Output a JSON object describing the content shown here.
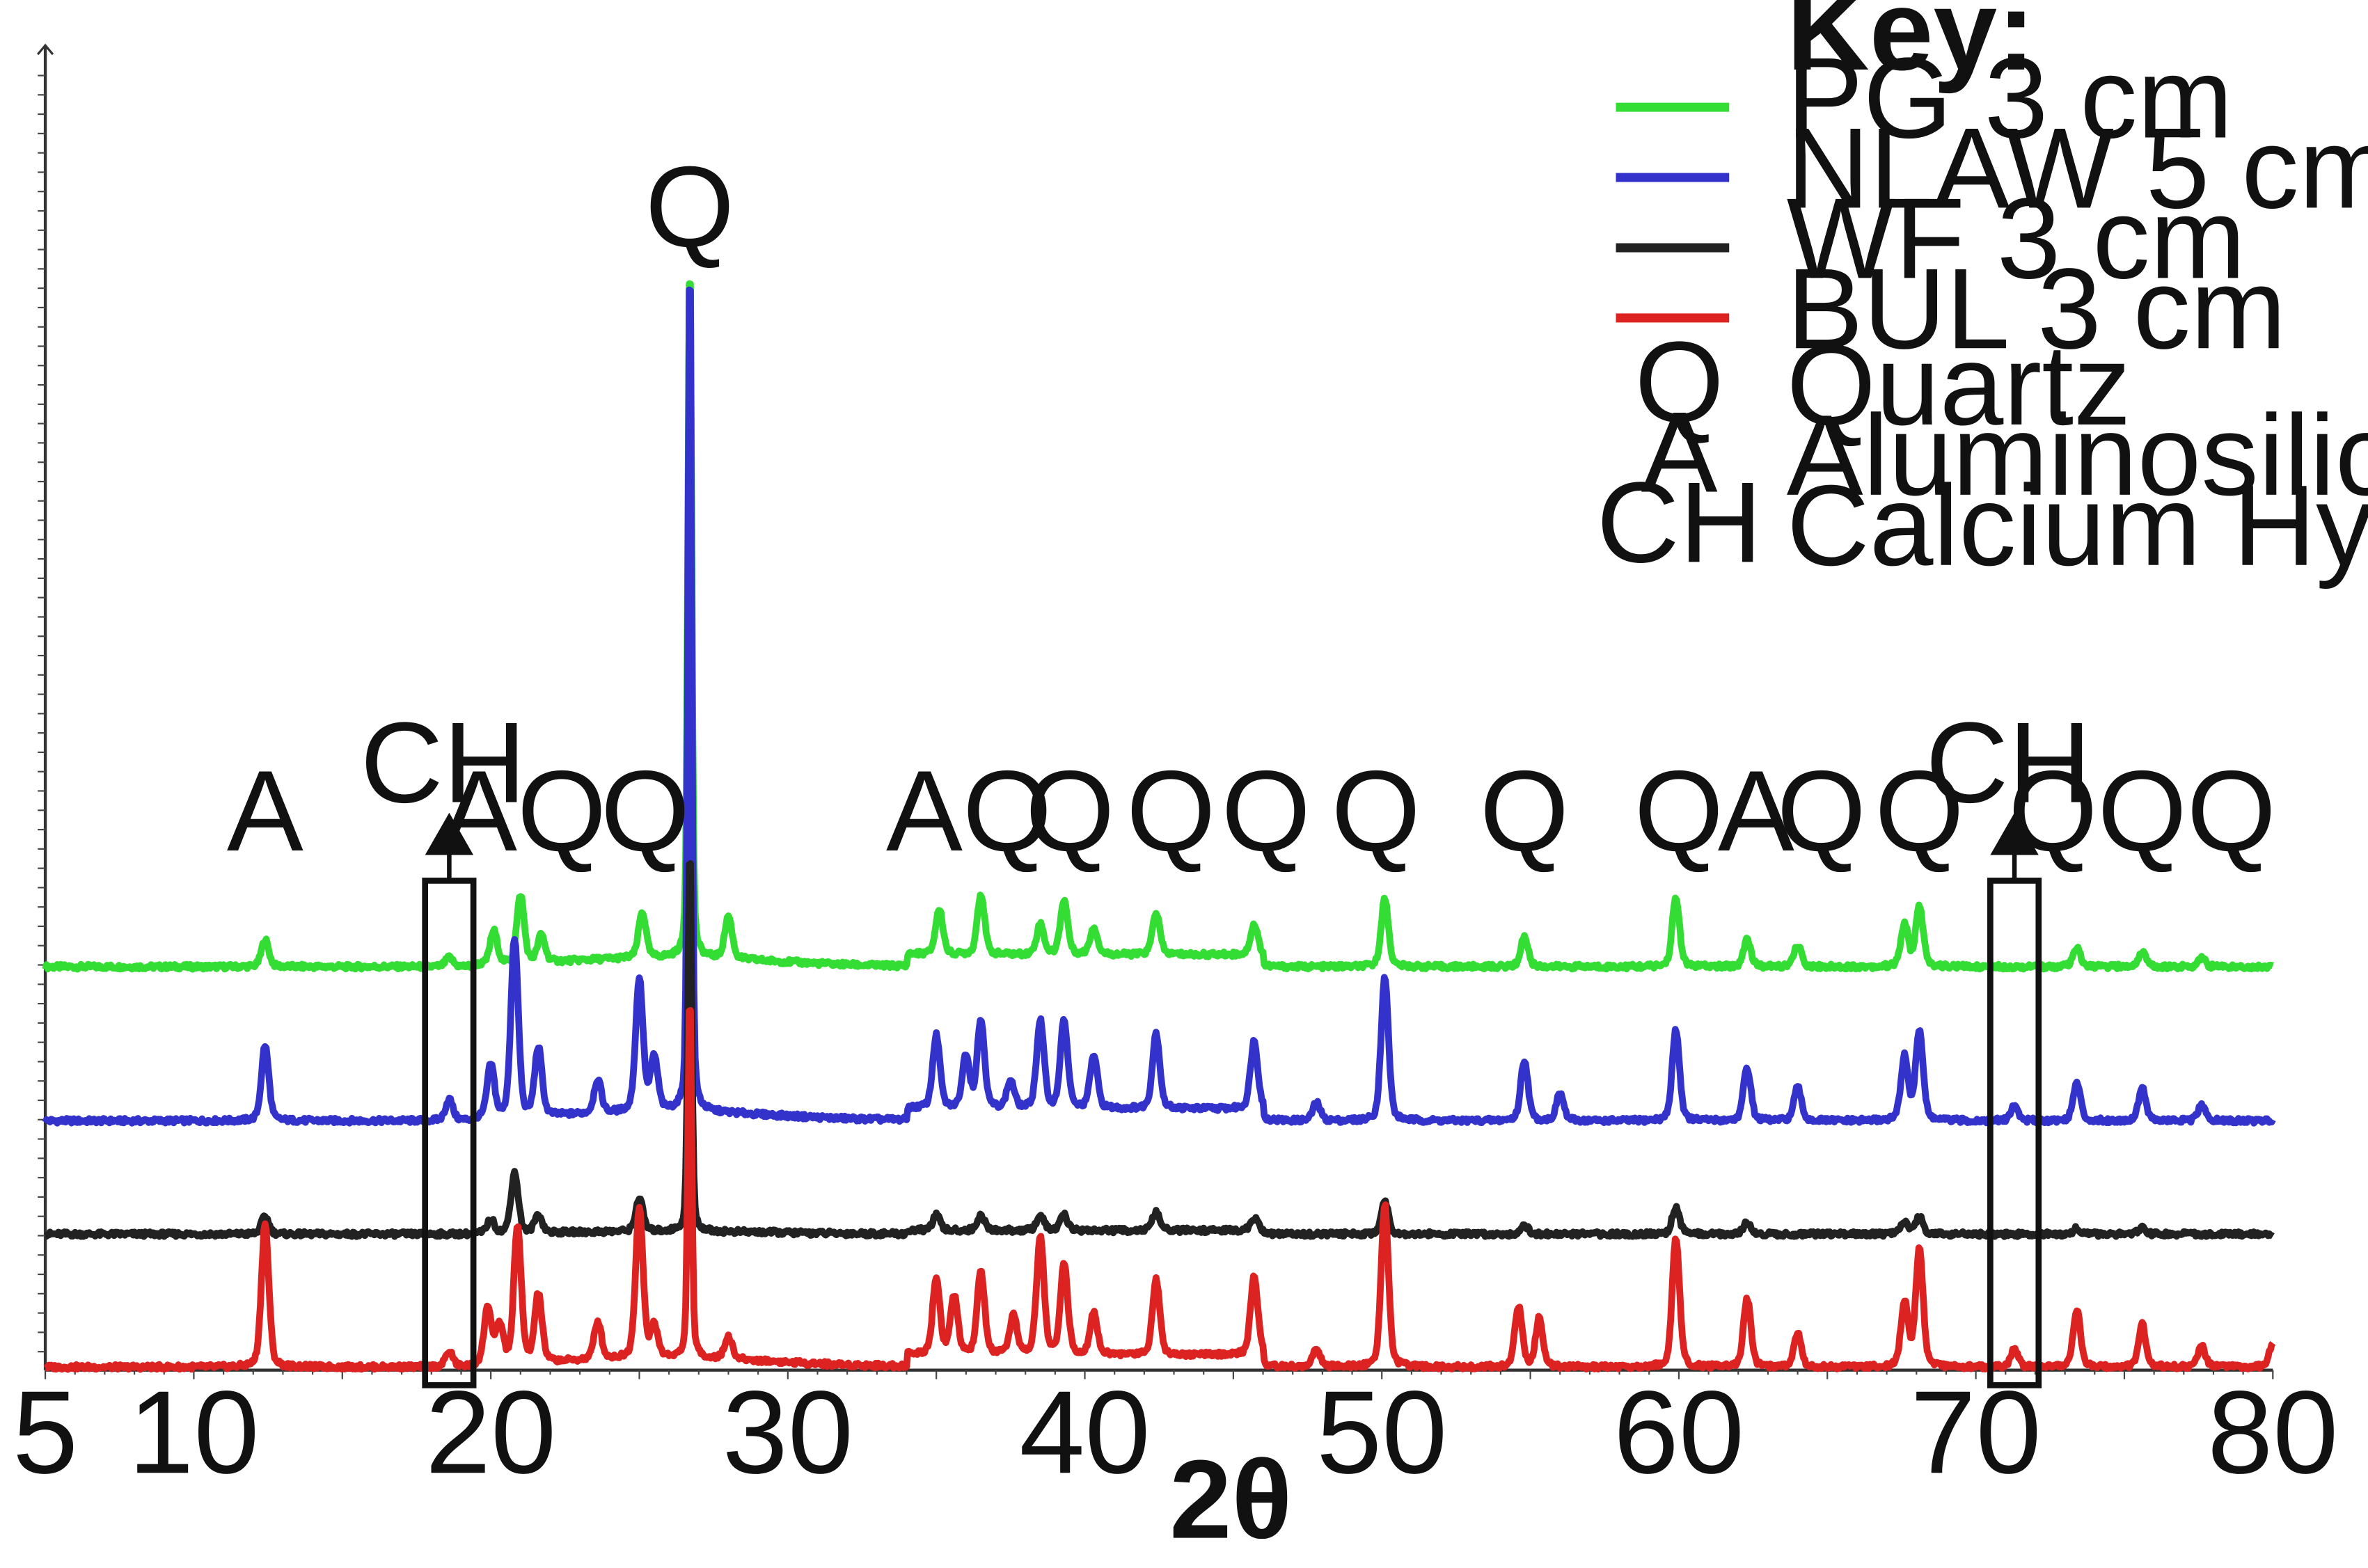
{
  "chart_data": {
    "type": "line",
    "xlabel": "2θ",
    "ylabel": "",
    "xlim": [
      5,
      80
    ],
    "x_ticks": [
      5,
      10,
      20,
      30,
      40,
      50,
      60,
      70,
      80
    ],
    "key_title": "Key:",
    "grid": false,
    "legend_position": "top-right",
    "series": [
      {
        "name": "PG 3 cm",
        "color": "#33dd33",
        "baseline": 640,
        "peaks": [
          [
            12.4,
            18
          ],
          [
            18.6,
            6
          ],
          [
            20.1,
            22
          ],
          [
            21.0,
            45
          ],
          [
            21.7,
            18
          ],
          [
            25.1,
            30
          ],
          [
            26.7,
            470
          ],
          [
            28.0,
            28
          ],
          [
            35.1,
            30
          ],
          [
            36.5,
            40
          ],
          [
            38.5,
            20
          ],
          [
            39.3,
            36
          ],
          [
            40.3,
            18
          ],
          [
            42.4,
            28
          ],
          [
            45.7,
            20
          ],
          [
            50.1,
            45
          ],
          [
            54.8,
            20
          ],
          [
            59.9,
            45
          ],
          [
            62.3,
            18
          ],
          [
            64.0,
            14
          ],
          [
            67.6,
            28
          ],
          [
            68.1,
            40
          ],
          [
            73.4,
            12
          ],
          [
            75.6,
            10
          ],
          [
            77.6,
            6
          ]
        ]
      },
      {
        "name": "NLAW 5 cm",
        "color": "#3333cc",
        "baseline": 742,
        "peaks": [
          [
            12.4,
            50
          ],
          [
            18.6,
            14
          ],
          [
            20.0,
            35
          ],
          [
            20.8,
            118
          ],
          [
            21.6,
            45
          ],
          [
            23.6,
            22
          ],
          [
            25.0,
            88
          ],
          [
            25.5,
            35
          ],
          [
            26.7,
            572
          ],
          [
            35.0,
            48
          ],
          [
            36.0,
            35
          ],
          [
            36.5,
            58
          ],
          [
            37.5,
            18
          ],
          [
            38.5,
            58
          ],
          [
            39.3,
            58
          ],
          [
            40.3,
            35
          ],
          [
            42.4,
            50
          ],
          [
            45.7,
            45
          ],
          [
            47.8,
            12
          ],
          [
            50.1,
            95
          ],
          [
            54.8,
            40
          ],
          [
            56.0,
            18
          ],
          [
            59.9,
            60
          ],
          [
            62.3,
            35
          ],
          [
            64.0,
            22
          ],
          [
            67.6,
            42
          ],
          [
            68.1,
            60
          ],
          [
            71.3,
            10
          ],
          [
            73.4,
            25
          ],
          [
            75.6,
            22
          ],
          [
            77.6,
            10
          ]
        ]
      },
      {
        "name": "WF 3 cm",
        "color": "#222222",
        "baseline": 817,
        "peaks": [
          [
            12.4,
            12
          ],
          [
            20.0,
            9
          ],
          [
            20.8,
            40
          ],
          [
            21.6,
            12
          ],
          [
            25.0,
            22
          ],
          [
            26.7,
            255
          ],
          [
            35.0,
            10
          ],
          [
            36.5,
            10
          ],
          [
            38.5,
            10
          ],
          [
            39.3,
            10
          ],
          [
            42.4,
            12
          ],
          [
            45.7,
            8
          ],
          [
            50.1,
            22
          ],
          [
            54.8,
            6
          ],
          [
            59.9,
            18
          ],
          [
            62.3,
            8
          ],
          [
            67.6,
            8
          ],
          [
            68.1,
            12
          ],
          [
            73.4,
            4
          ],
          [
            75.6,
            4
          ]
        ]
      },
      {
        "name": "BUL 3 cm",
        "color": "#dd2222",
        "baseline": 905,
        "peaks": [
          [
            12.4,
            95
          ],
          [
            18.6,
            10
          ],
          [
            19.9,
            38
          ],
          [
            20.3,
            25
          ],
          [
            20.9,
            90
          ],
          [
            21.6,
            45
          ],
          [
            23.6,
            25
          ],
          [
            25.0,
            100
          ],
          [
            25.5,
            20
          ],
          [
            26.7,
            240
          ],
          [
            28.0,
            15
          ],
          [
            35.0,
            50
          ],
          [
            35.6,
            38
          ],
          [
            36.5,
            55
          ],
          [
            37.6,
            25
          ],
          [
            38.5,
            78
          ],
          [
            39.3,
            60
          ],
          [
            40.3,
            28
          ],
          [
            42.4,
            50
          ],
          [
            45.7,
            52
          ],
          [
            47.8,
            12
          ],
          [
            50.1,
            108
          ],
          [
            54.6,
            40
          ],
          [
            55.3,
            32
          ],
          [
            59.9,
            85
          ],
          [
            62.3,
            45
          ],
          [
            64.0,
            22
          ],
          [
            67.6,
            42
          ],
          [
            68.1,
            78
          ],
          [
            71.3,
            12
          ],
          [
            73.4,
            38
          ],
          [
            75.6,
            28
          ],
          [
            77.6,
            14
          ],
          [
            80.0,
            15
          ]
        ]
      }
    ],
    "annotations": [
      {
        "text": "A",
        "x": 12.4
      },
      {
        "text": "AQ",
        "x": 21.1
      },
      {
        "text": "Q",
        "x": 25.2
      },
      {
        "text": "Q",
        "x": 26.7,
        "top": true
      },
      {
        "text": "AQ",
        "x": 36.1
      },
      {
        "text": "Q",
        "x": 39.5
      },
      {
        "text": "Q",
        "x": 42.9
      },
      {
        "text": "Q",
        "x": 46.1
      },
      {
        "text": "Q",
        "x": 49.8
      },
      {
        "text": "Q",
        "x": 54.8
      },
      {
        "text": "Q",
        "x": 60.0
      },
      {
        "text": "A",
        "x": 62.6
      },
      {
        "text": "Q",
        "x": 64.8
      },
      {
        "text": "Q",
        "x": 68.1
      },
      {
        "text": "QQQ",
        "x": 75.6
      }
    ],
    "ch_markers": [
      {
        "text": "CH",
        "x": 18.6
      },
      {
        "text": "CH",
        "x": 71.3
      }
    ],
    "key": [
      {
        "symbol": "Q",
        "label": "Quartz"
      },
      {
        "symbol": "A",
        "label": "Aluminosilicate (Clay)"
      },
      {
        "symbol": "CH",
        "label": "Calcium Hydroxide"
      }
    ]
  }
}
